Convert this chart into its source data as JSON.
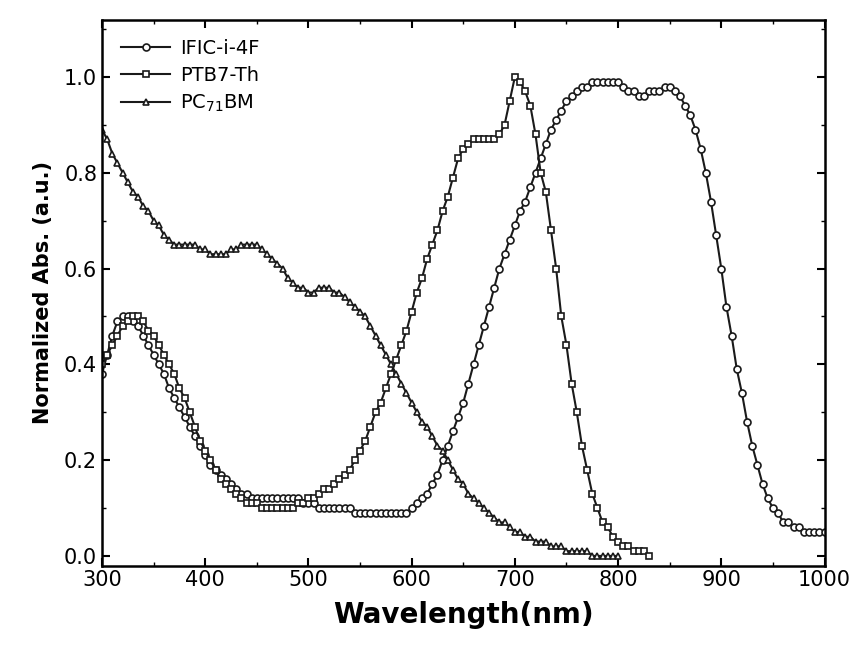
{
  "title": "",
  "xlabel": "Wavelength(nm)",
  "ylabel": "Normalized Abs. (a.u.)",
  "xlim": [
    300,
    1000
  ],
  "ylim": [
    -0.02,
    1.12
  ],
  "xticks": [
    300,
    400,
    500,
    600,
    700,
    800,
    900,
    1000
  ],
  "yticks": [
    0.0,
    0.2,
    0.4,
    0.6,
    0.8,
    1.0
  ],
  "line_color": "#1a1a1a",
  "IFIC_i_4F": {
    "x": [
      300,
      305,
      310,
      315,
      320,
      325,
      330,
      335,
      340,
      345,
      350,
      355,
      360,
      365,
      370,
      375,
      380,
      385,
      390,
      395,
      400,
      405,
      410,
      415,
      420,
      425,
      430,
      435,
      440,
      445,
      450,
      455,
      460,
      465,
      470,
      475,
      480,
      485,
      490,
      495,
      500,
      505,
      510,
      515,
      520,
      525,
      530,
      535,
      540,
      545,
      550,
      555,
      560,
      565,
      570,
      575,
      580,
      585,
      590,
      595,
      600,
      605,
      610,
      615,
      620,
      625,
      630,
      635,
      640,
      645,
      650,
      655,
      660,
      665,
      670,
      675,
      680,
      685,
      690,
      695,
      700,
      705,
      710,
      715,
      720,
      725,
      730,
      735,
      740,
      745,
      750,
      755,
      760,
      765,
      770,
      775,
      780,
      785,
      790,
      795,
      800,
      805,
      810,
      815,
      820,
      825,
      830,
      835,
      840,
      845,
      850,
      855,
      860,
      865,
      870,
      875,
      880,
      885,
      890,
      895,
      900,
      905,
      910,
      915,
      920,
      925,
      930,
      935,
      940,
      945,
      950,
      955,
      960,
      965,
      970,
      975,
      980,
      985,
      990,
      995,
      1000
    ],
    "y": [
      0.38,
      0.42,
      0.46,
      0.49,
      0.5,
      0.5,
      0.49,
      0.48,
      0.46,
      0.44,
      0.42,
      0.4,
      0.38,
      0.35,
      0.33,
      0.31,
      0.29,
      0.27,
      0.25,
      0.23,
      0.21,
      0.19,
      0.18,
      0.17,
      0.16,
      0.15,
      0.14,
      0.13,
      0.13,
      0.12,
      0.12,
      0.12,
      0.12,
      0.12,
      0.12,
      0.12,
      0.12,
      0.12,
      0.12,
      0.11,
      0.11,
      0.11,
      0.1,
      0.1,
      0.1,
      0.1,
      0.1,
      0.1,
      0.1,
      0.09,
      0.09,
      0.09,
      0.09,
      0.09,
      0.09,
      0.09,
      0.09,
      0.09,
      0.09,
      0.09,
      0.1,
      0.11,
      0.12,
      0.13,
      0.15,
      0.17,
      0.2,
      0.23,
      0.26,
      0.29,
      0.32,
      0.36,
      0.4,
      0.44,
      0.48,
      0.52,
      0.56,
      0.6,
      0.63,
      0.66,
      0.69,
      0.72,
      0.74,
      0.77,
      0.8,
      0.83,
      0.86,
      0.89,
      0.91,
      0.93,
      0.95,
      0.96,
      0.97,
      0.98,
      0.98,
      0.99,
      0.99,
      0.99,
      0.99,
      0.99,
      0.99,
      0.98,
      0.97,
      0.97,
      0.96,
      0.96,
      0.97,
      0.97,
      0.97,
      0.98,
      0.98,
      0.97,
      0.96,
      0.94,
      0.92,
      0.89,
      0.85,
      0.8,
      0.74,
      0.67,
      0.6,
      0.52,
      0.46,
      0.39,
      0.34,
      0.28,
      0.23,
      0.19,
      0.15,
      0.12,
      0.1,
      0.09,
      0.07,
      0.07,
      0.06,
      0.06,
      0.05,
      0.05,
      0.05,
      0.05,
      0.05
    ]
  },
  "PTB7_Th": {
    "x": [
      300,
      305,
      310,
      315,
      320,
      325,
      330,
      335,
      340,
      345,
      350,
      355,
      360,
      365,
      370,
      375,
      380,
      385,
      390,
      395,
      400,
      405,
      410,
      415,
      420,
      425,
      430,
      435,
      440,
      445,
      450,
      455,
      460,
      465,
      470,
      475,
      480,
      485,
      490,
      495,
      500,
      505,
      510,
      515,
      520,
      525,
      530,
      535,
      540,
      545,
      550,
      555,
      560,
      565,
      570,
      575,
      580,
      585,
      590,
      595,
      600,
      605,
      610,
      615,
      620,
      625,
      630,
      635,
      640,
      645,
      650,
      655,
      660,
      665,
      670,
      675,
      680,
      685,
      690,
      695,
      700,
      705,
      710,
      715,
      720,
      725,
      730,
      735,
      740,
      745,
      750,
      755,
      760,
      765,
      770,
      775,
      780,
      785,
      790,
      795,
      800,
      805,
      810,
      815,
      820,
      825,
      830
    ],
    "y": [
      0.4,
      0.42,
      0.44,
      0.46,
      0.48,
      0.49,
      0.5,
      0.5,
      0.49,
      0.47,
      0.46,
      0.44,
      0.42,
      0.4,
      0.38,
      0.35,
      0.33,
      0.3,
      0.27,
      0.24,
      0.22,
      0.2,
      0.18,
      0.16,
      0.15,
      0.14,
      0.13,
      0.12,
      0.11,
      0.11,
      0.11,
      0.1,
      0.1,
      0.1,
      0.1,
      0.1,
      0.1,
      0.1,
      0.11,
      0.11,
      0.12,
      0.12,
      0.13,
      0.14,
      0.14,
      0.15,
      0.16,
      0.17,
      0.18,
      0.2,
      0.22,
      0.24,
      0.27,
      0.3,
      0.32,
      0.35,
      0.38,
      0.41,
      0.44,
      0.47,
      0.51,
      0.55,
      0.58,
      0.62,
      0.65,
      0.68,
      0.72,
      0.75,
      0.79,
      0.83,
      0.85,
      0.86,
      0.87,
      0.87,
      0.87,
      0.87,
      0.87,
      0.88,
      0.9,
      0.95,
      1.0,
      0.99,
      0.97,
      0.94,
      0.88,
      0.8,
      0.76,
      0.68,
      0.6,
      0.5,
      0.44,
      0.36,
      0.3,
      0.23,
      0.18,
      0.13,
      0.1,
      0.07,
      0.06,
      0.04,
      0.03,
      0.02,
      0.02,
      0.01,
      0.01,
      0.01,
      0.0
    ]
  },
  "PC71BM": {
    "x": [
      300,
      305,
      310,
      315,
      320,
      325,
      330,
      335,
      340,
      345,
      350,
      355,
      360,
      365,
      370,
      375,
      380,
      385,
      390,
      395,
      400,
      405,
      410,
      415,
      420,
      425,
      430,
      435,
      440,
      445,
      450,
      455,
      460,
      465,
      470,
      475,
      480,
      485,
      490,
      495,
      500,
      505,
      510,
      515,
      520,
      525,
      530,
      535,
      540,
      545,
      550,
      555,
      560,
      565,
      570,
      575,
      580,
      585,
      590,
      595,
      600,
      605,
      610,
      615,
      620,
      625,
      630,
      635,
      640,
      645,
      650,
      655,
      660,
      665,
      670,
      675,
      680,
      685,
      690,
      695,
      700,
      705,
      710,
      715,
      720,
      725,
      730,
      735,
      740,
      745,
      750,
      755,
      760,
      765,
      770,
      775,
      780,
      785,
      790,
      795,
      800
    ],
    "y": [
      0.89,
      0.87,
      0.84,
      0.82,
      0.8,
      0.78,
      0.76,
      0.75,
      0.73,
      0.72,
      0.7,
      0.69,
      0.67,
      0.66,
      0.65,
      0.65,
      0.65,
      0.65,
      0.65,
      0.64,
      0.64,
      0.63,
      0.63,
      0.63,
      0.63,
      0.64,
      0.64,
      0.65,
      0.65,
      0.65,
      0.65,
      0.64,
      0.63,
      0.62,
      0.61,
      0.6,
      0.58,
      0.57,
      0.56,
      0.56,
      0.55,
      0.55,
      0.56,
      0.56,
      0.56,
      0.55,
      0.55,
      0.54,
      0.53,
      0.52,
      0.51,
      0.5,
      0.48,
      0.46,
      0.44,
      0.42,
      0.4,
      0.38,
      0.36,
      0.34,
      0.32,
      0.3,
      0.28,
      0.27,
      0.25,
      0.23,
      0.22,
      0.2,
      0.18,
      0.16,
      0.15,
      0.13,
      0.12,
      0.11,
      0.1,
      0.09,
      0.08,
      0.07,
      0.07,
      0.06,
      0.05,
      0.05,
      0.04,
      0.04,
      0.03,
      0.03,
      0.03,
      0.02,
      0.02,
      0.02,
      0.01,
      0.01,
      0.01,
      0.01,
      0.01,
      0.0,
      0.0,
      0.0,
      0.0,
      0.0,
      0.0
    ]
  }
}
